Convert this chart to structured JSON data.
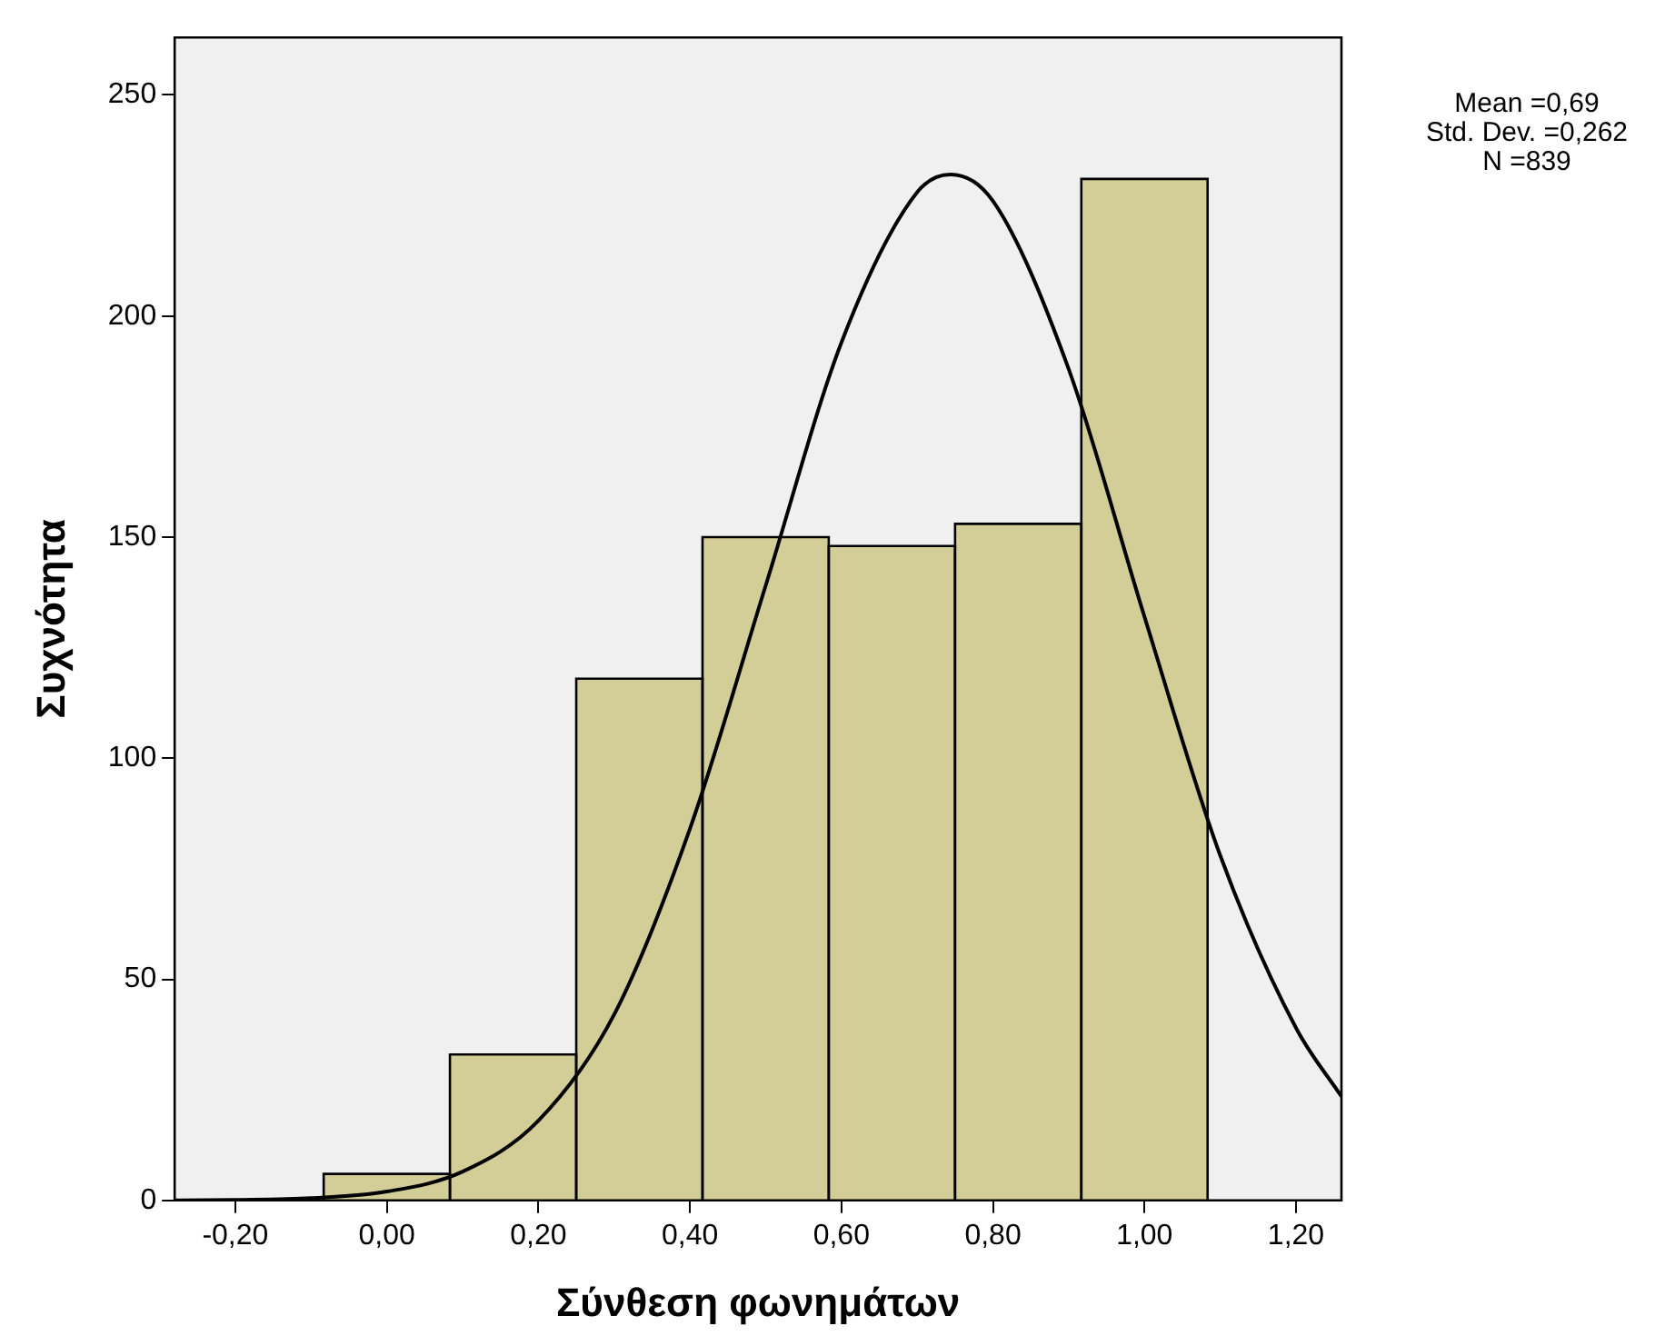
{
  "chart_data": {
    "type": "histogram",
    "xlabel": "Σύνθεση φωνημάτων",
    "ylabel": "Συχνότητα",
    "bins": [
      -0.0833,
      0.0833,
      0.25,
      0.4167,
      0.5833,
      0.75,
      0.9167,
      1.0833
    ],
    "values": [
      6,
      33,
      118,
      150,
      148,
      153,
      231
    ],
    "color": "#d3ce97",
    "series": [
      {
        "type": "line",
        "color": "#000000",
        "x": [
          -0.28,
          -0.2,
          -0.1,
          0,
          0.1,
          0.2,
          0.3,
          0.4,
          0.5,
          0.6,
          0.7,
          0.744,
          0.8,
          0.9,
          1.0,
          1.1,
          1.2,
          1.26
        ],
        "values": [
          0,
          0.1,
          0.5,
          2,
          6.5,
          18,
          42,
          84,
          139,
          194,
          228,
          232,
          226,
          188,
          132,
          78,
          39,
          23.5
        ]
      }
    ],
    "xlim": [
      -0.28,
      1.26
    ],
    "ylim": [
      0,
      263
    ],
    "xticks": [
      {
        "value": -0.2,
        "label": "-0,20"
      },
      {
        "value": 0,
        "label": "0,00"
      },
      {
        "value": 0.2,
        "label": "0,20"
      },
      {
        "value": 0.4,
        "label": "0,40"
      },
      {
        "value": 0.6,
        "label": "0,60"
      },
      {
        "value": 0.8,
        "label": "0,80"
      },
      {
        "value": 1.0,
        "label": "1,00"
      },
      {
        "value": 1.2,
        "label": "1,20"
      }
    ],
    "yticks": [
      0,
      50,
      100,
      150,
      200,
      250
    ],
    "annotations": [
      "Mean =0,69",
      "Std. Dev. =0,262",
      "N =839"
    ],
    "grid": false,
    "legend": false,
    "marker": "none"
  }
}
